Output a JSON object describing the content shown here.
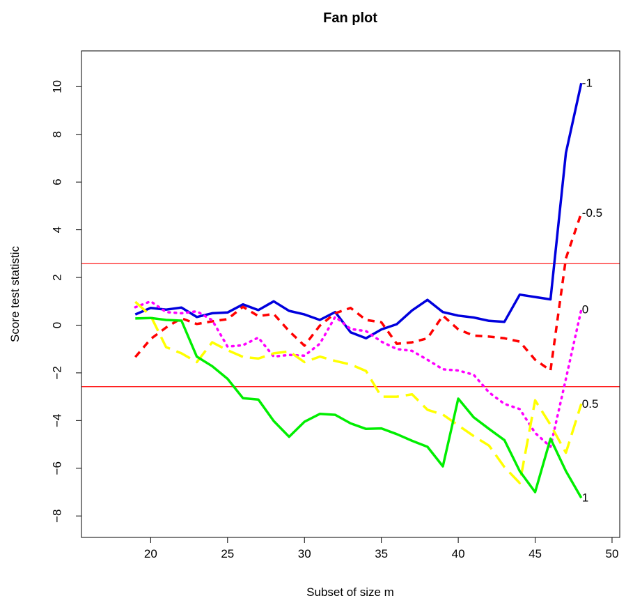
{
  "chart_data": {
    "type": "line",
    "title": "Fan plot",
    "xlabel": "Subset of size m",
    "ylabel": "Score test statistic",
    "xlim": [
      15.5,
      50.5
    ],
    "ylim": [
      -8.9,
      11.5
    ],
    "xticks": [
      20,
      25,
      30,
      35,
      40,
      45,
      50
    ],
    "yticks": [
      -8,
      -6,
      -4,
      -2,
      0,
      2,
      4,
      6,
      8,
      10
    ],
    "grid": false,
    "legend": "none",
    "x": [
      19,
      20,
      21,
      22,
      23,
      24,
      25,
      26,
      27,
      28,
      29,
      30,
      31,
      32,
      33,
      34,
      35,
      36,
      37,
      38,
      39,
      40,
      41,
      42,
      43,
      44,
      45,
      46,
      47,
      48
    ],
    "reference_lines": [
      {
        "y": 2.58,
        "color": "#ff0000"
      },
      {
        "y": -2.58,
        "color": "#ff0000"
      }
    ],
    "series": [
      {
        "label": "-1",
        "color": "#0000dd",
        "dash": "solid",
        "values": [
          0.45,
          0.72,
          0.65,
          0.74,
          0.34,
          0.5,
          0.53,
          0.87,
          0.63,
          1.0,
          0.6,
          0.45,
          0.22,
          0.55,
          -0.3,
          -0.55,
          -0.18,
          0.04,
          0.62,
          1.06,
          0.55,
          0.4,
          0.32,
          0.18,
          0.14,
          1.28,
          1.18,
          1.08,
          7.22,
          10.15
        ]
      },
      {
        "label": "-0.5",
        "color": "#ff0000",
        "dash": "dashed",
        "values": [
          -1.34,
          -0.58,
          -0.1,
          0.29,
          0.05,
          0.16,
          0.25,
          0.77,
          0.38,
          0.47,
          -0.25,
          -0.86,
          -0.02,
          0.5,
          0.72,
          0.22,
          0.12,
          -0.78,
          -0.72,
          -0.55,
          0.4,
          -0.18,
          -0.44,
          -0.48,
          -0.55,
          -0.69,
          -1.45,
          -1.9,
          2.8,
          4.7
        ]
      },
      {
        "label": "0",
        "color": "#ff00ff",
        "dash": "dotted",
        "values": [
          0.75,
          1.0,
          0.55,
          0.5,
          0.58,
          0.21,
          -0.9,
          -0.84,
          -0.52,
          -1.32,
          -1.25,
          -1.28,
          -0.78,
          0.35,
          -0.16,
          -0.25,
          -0.69,
          -1.0,
          -1.08,
          -1.45,
          -1.85,
          -1.9,
          -2.08,
          -2.82,
          -3.3,
          -3.52,
          -4.52,
          -5.1,
          -2.25,
          0.65
        ]
      },
      {
        "label": "0.5",
        "color": "#ffff00",
        "dash": "longdash",
        "values": [
          0.98,
          0.39,
          -0.92,
          -1.18,
          -1.55,
          -0.72,
          -1.05,
          -1.33,
          -1.4,
          -1.18,
          -1.1,
          -1.55,
          -1.32,
          -1.5,
          -1.65,
          -1.92,
          -3.0,
          -3.0,
          -2.9,
          -3.55,
          -3.75,
          -4.2,
          -4.65,
          -5.05,
          -5.95,
          -6.62,
          -3.15,
          -4.18,
          -5.35,
          -3.3
        ]
      },
      {
        "label": "1",
        "color": "#00ee00",
        "dash": "solid",
        "values": [
          0.28,
          0.3,
          0.22,
          0.19,
          -1.32,
          -1.72,
          -2.25,
          -3.06,
          -3.12,
          -4.02,
          -4.68,
          -4.05,
          -3.72,
          -3.76,
          -4.12,
          -4.35,
          -4.33,
          -4.57,
          -4.85,
          -5.1,
          -5.92,
          -3.08,
          -3.86,
          -4.35,
          -4.82,
          -6.12,
          -7.0,
          -4.76,
          -6.12,
          -7.24
        ]
      }
    ]
  }
}
